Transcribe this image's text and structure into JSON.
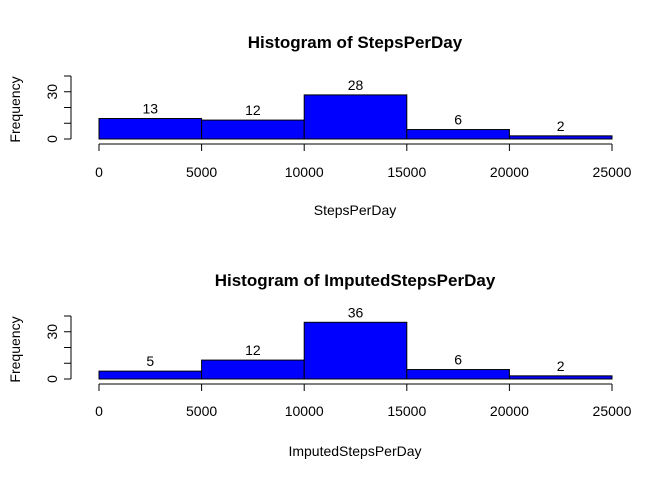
{
  "chart_data": [
    {
      "type": "bar",
      "title": "Histogram of StepsPerDay",
      "xlabel": "StepsPerDay",
      "ylabel": "Frequency",
      "bins": [
        [
          0,
          5000
        ],
        [
          5000,
          10000
        ],
        [
          10000,
          15000
        ],
        [
          15000,
          20000
        ],
        [
          20000,
          25000
        ]
      ],
      "values": [
        13,
        12,
        28,
        6,
        2
      ],
      "xlim": [
        0,
        25000
      ],
      "ylim": [
        0,
        40
      ],
      "x_ticks": [
        0,
        5000,
        10000,
        15000,
        20000,
        25000
      ],
      "y_ticks": [
        0,
        30
      ],
      "bar_color": "#0000ff",
      "grid": false
    },
    {
      "type": "bar",
      "title": "Histogram of ImputedStepsPerDay",
      "xlabel": "ImputedStepsPerDay",
      "ylabel": "Frequency",
      "bins": [
        [
          0,
          5000
        ],
        [
          5000,
          10000
        ],
        [
          10000,
          15000
        ],
        [
          15000,
          20000
        ],
        [
          20000,
          25000
        ]
      ],
      "values": [
        5,
        12,
        36,
        6,
        2
      ],
      "xlim": [
        0,
        25000
      ],
      "ylim": [
        0,
        40
      ],
      "x_ticks": [
        0,
        5000,
        10000,
        15000,
        20000,
        25000
      ],
      "y_ticks": [
        0,
        30
      ],
      "bar_color": "#0000ff",
      "grid": false
    }
  ]
}
